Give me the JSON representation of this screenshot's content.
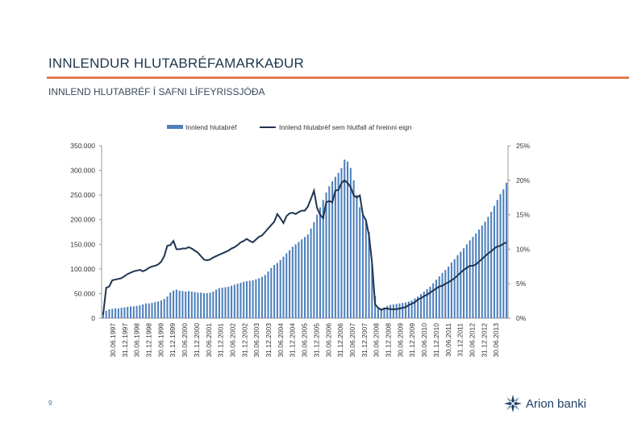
{
  "slide": {
    "title": "INNLENDUR HLUTABRÉFAMARKAÐUR",
    "subtitle": "INNLEND HLUTABRÉF Í SAFNI LÍFEYRISSJÓÐA",
    "page_number": "9",
    "accent_color": "#e07b53"
  },
  "logo": {
    "text": "Arion banki",
    "icon": "arion-star-icon"
  },
  "chart_data": {
    "type": "bar",
    "legend": [
      "Innlend hlutabréf",
      "Innlend hlutabréf sem hlutfall af hreinni eign"
    ],
    "legend_position": "top",
    "y_left": {
      "ticks": [
        "0",
        "50.000",
        "100.000",
        "150.000",
        "200.000",
        "250.000",
        "300.000",
        "350.000"
      ],
      "range": [
        0,
        350000
      ]
    },
    "y_right": {
      "ticks": [
        "0%",
        "5%",
        "10%",
        "15%",
        "20%",
        "25%"
      ],
      "range": [
        0,
        25
      ]
    },
    "x_tick_labels": [
      "30.06.1997",
      "31.12.1997",
      "30.06.1998",
      "31.12.1998",
      "30.06.1999",
      "31.12.1999",
      "30.06.2000",
      "31.12.2000",
      "30.06.2001",
      "31.12.2001",
      "30.06.2002",
      "31.12.2002",
      "30.06.2003",
      "31.12.2003",
      "30.06.2004",
      "31.12.2004",
      "30.06.2005",
      "31.12.2005",
      "30.06.2006",
      "31.12.2006",
      "30.06.2007",
      "31.12.2007",
      "30.06.2008",
      "31.12.2008",
      "30.06.2009",
      "31.12.2009",
      "30.06.2010",
      "31.12.2010",
      "30.06.2011",
      "31.12.2011",
      "30.06.2012",
      "31.12.2012",
      "30.06.2013"
    ],
    "series": [
      {
        "name": "Innlend hlutabréf",
        "kind": "bar",
        "color": "#4f81bd",
        "values": [
          13000,
          15000,
          18000,
          19000,
          20000,
          20000,
          21000,
          22000,
          23000,
          24000,
          24000,
          25000,
          26000,
          28000,
          30000,
          30000,
          31000,
          33000,
          34000,
          36000,
          39000,
          44000,
          52000,
          56000,
          58000,
          56000,
          55000,
          54000,
          55000,
          54000,
          53000,
          52000,
          52000,
          51000,
          51000,
          52000,
          54000,
          58000,
          61000,
          62000,
          63000,
          64000,
          66000,
          68000,
          70000,
          72000,
          74000,
          75000,
          76000,
          77000,
          79000,
          81000,
          84000,
          88000,
          95000,
          102000,
          108000,
          112000,
          118000,
          125000,
          132000,
          138000,
          145000,
          150000,
          155000,
          160000,
          165000,
          170000,
          182000,
          195000,
          210000,
          225000,
          240000,
          255000,
          268000,
          278000,
          287000,
          295000,
          305000,
          322000,
          318000,
          305000,
          280000,
          250000,
          225000,
          210000,
          200000,
          175000,
          110000,
          45000,
          22000,
          20000,
          22000,
          25000,
          27000,
          28000,
          29000,
          30000,
          31000,
          32000,
          34000,
          36000,
          40000,
          44000,
          49000,
          54000,
          59000,
          64000,
          71000,
          78000,
          85000,
          92000,
          98000,
          105000,
          113000,
          120000,
          128000,
          135000,
          142000,
          150000,
          158000,
          165000,
          172000,
          180000,
          188000,
          196000,
          206000,
          216000,
          228000,
          240000,
          252000,
          262000,
          275000
        ]
      },
      {
        "name": "Innlend hlutabréf sem hlutfall af hreinni eign",
        "kind": "line",
        "color": "#1f3550",
        "values": [
          0.5,
          4.4,
          4.6,
          5.5,
          5.6,
          5.7,
          5.8,
          6.1,
          6.4,
          6.6,
          6.8,
          6.9,
          7.0,
          6.8,
          7.0,
          7.3,
          7.5,
          7.6,
          7.8,
          8.2,
          9.0,
          10.5,
          10.6,
          11.2,
          10.0,
          10.0,
          10.1,
          10.1,
          10.3,
          10.1,
          9.8,
          9.5,
          9.0,
          8.5,
          8.4,
          8.5,
          8.8,
          9.0,
          9.2,
          9.4,
          9.6,
          9.8,
          10.1,
          10.3,
          10.6,
          11.0,
          11.2,
          11.5,
          11.2,
          11.0,
          11.4,
          11.8,
          12.0,
          12.5,
          13.0,
          13.5,
          14.0,
          15.1,
          14.5,
          13.8,
          14.8,
          15.2,
          15.3,
          15.1,
          15.4,
          15.6,
          15.6,
          16.2,
          17.3,
          18.5,
          16.0,
          15.0,
          14.5,
          16.8,
          17.0,
          16.8,
          18.5,
          18.6,
          19.6,
          20.0,
          19.6,
          19.0,
          17.8,
          17.5,
          17.8,
          15.0,
          14.2,
          12.0,
          8.0,
          2.0,
          1.5,
          1.2,
          1.4,
          1.4,
          1.3,
          1.3,
          1.3,
          1.4,
          1.5,
          1.6,
          1.9,
          2.1,
          2.3,
          2.7,
          2.9,
          3.2,
          3.4,
          3.7,
          4.0,
          4.3,
          4.6,
          4.7,
          5.0,
          5.2,
          5.5,
          5.8,
          6.2,
          6.6,
          7.0,
          7.3,
          7.6,
          7.6,
          7.8,
          8.2,
          8.6,
          9.0,
          9.4,
          9.7,
          10.1,
          10.4,
          10.5,
          10.8,
          11.0
        ]
      }
    ]
  }
}
